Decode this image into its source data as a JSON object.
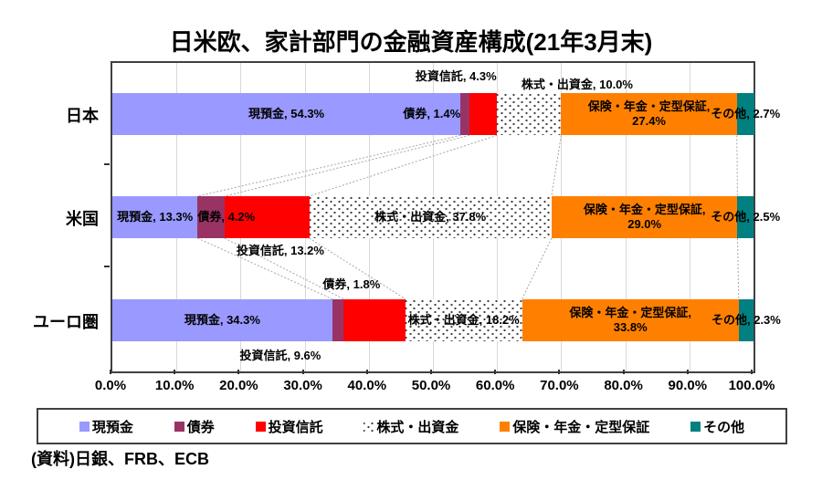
{
  "title": "日米欧、家計部門の金融資産構成(21年3月末)",
  "source": "(資料)日銀、FRB、ECB",
  "chart_data": {
    "type": "bar",
    "variant": "horizontal-stacked-100percent",
    "title": "日米欧、家計部門の金融資産構成(21年3月末)",
    "categories": [
      "日本",
      "米国",
      "ユーロ圏"
    ],
    "category_keys": [
      "japan",
      "us",
      "euro-area"
    ],
    "series": [
      {
        "key": "cash-deposits",
        "name": "現預金",
        "color": "#9999FF",
        "pattern": "solid",
        "values": [
          54.3,
          13.3,
          34.3
        ]
      },
      {
        "key": "bonds",
        "name": "債券",
        "color": "#993366",
        "pattern": "solid",
        "values": [
          1.4,
          4.2,
          1.8
        ]
      },
      {
        "key": "investment-trusts",
        "name": "投資信託",
        "color": "#FF0000",
        "pattern": "solid",
        "values": [
          4.3,
          13.2,
          9.6
        ]
      },
      {
        "key": "equities",
        "name": "株式・出資金",
        "color": "#FFFFFF",
        "pattern": "dots",
        "values": [
          10.0,
          37.8,
          18.2
        ]
      },
      {
        "key": "insurance-pensions",
        "name": "保険・年金・定型保証",
        "color": "#FF8000",
        "pattern": "solid",
        "values": [
          27.4,
          29.0,
          33.8
        ]
      },
      {
        "key": "other",
        "name": "その他",
        "color": "#008080",
        "pattern": "solid",
        "values": [
          2.7,
          2.5,
          2.3
        ]
      }
    ],
    "x_ticks": [
      "0.0%",
      "10.0%",
      "20.0%",
      "30.0%",
      "40.0%",
      "50.0%",
      "60.0%",
      "70.0%",
      "80.0%",
      "90.0%",
      "100.0%"
    ],
    "xlim": [
      0,
      100
    ],
    "grid": true,
    "legend_position": "bottom-boxed",
    "connector_lines": true,
    "label_format": "name, value%",
    "colors": {
      "grid": "#D9D9D9",
      "connector": "#A6A6A6",
      "dots_pattern_fg": "#404040",
      "text": "#000000",
      "plot_border": "#404040"
    }
  }
}
